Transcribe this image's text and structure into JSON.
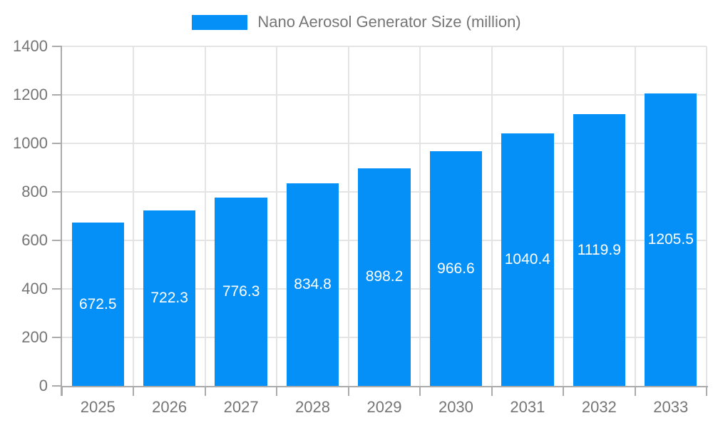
{
  "chart_data": {
    "type": "bar",
    "title": "Nano Aerosol Generator Size (million)",
    "categories": [
      "2025",
      "2026",
      "2027",
      "2028",
      "2029",
      "2030",
      "2031",
      "2032",
      "2033"
    ],
    "values": [
      672.5,
      722.3,
      776.3,
      834.8,
      898.2,
      966.6,
      1040.4,
      1119.9,
      1205.5
    ],
    "xlabel": "",
    "ylabel": "",
    "ylim": [
      0,
      1400
    ],
    "ytick_step": 200,
    "yticks": [
      0,
      200,
      400,
      600,
      800,
      1000,
      1200,
      1400
    ],
    "grid": true,
    "legend_position": "top-center",
    "value_labels_position": "inside-center",
    "colors": {
      "bar": "#0590f8",
      "value_label": "#ffffff",
      "axis_text": "#757575",
      "grid_line": "#e4e4e4",
      "axis_line": "#ababab"
    }
  }
}
